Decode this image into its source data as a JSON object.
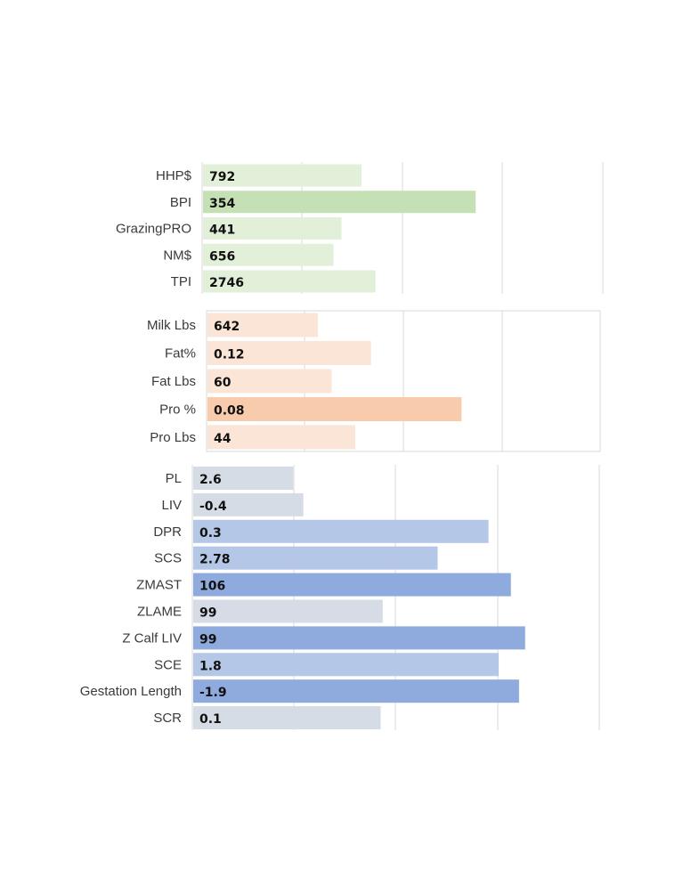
{
  "chart_data": [
    {
      "type": "bar",
      "orientation": "horizontal",
      "categories": [
        "HHP$",
        "BPI",
        "GrazingPRO",
        "NM$",
        "TPI"
      ],
      "values": [
        792,
        354,
        441,
        656,
        2746
      ],
      "value_labels": [
        "792",
        "354",
        "441",
        "656",
        "2746"
      ],
      "bar_fill_fraction": [
        0.4,
        0.685,
        0.35,
        0.33,
        0.435
      ],
      "colors": [
        "#e2f0d9",
        "#c5e0b4",
        "#e2f0d9",
        "#e2f0d9",
        "#e2f0d9"
      ],
      "grid": true
    },
    {
      "type": "bar",
      "orientation": "horizontal",
      "categories": [
        "Milk Lbs",
        "Fat%",
        "Fat Lbs",
        "Pro %",
        "Pro Lbs"
      ],
      "values": [
        642,
        0.12,
        60,
        0.08,
        44
      ],
      "value_labels": [
        "642",
        "0.12",
        "60",
        "0.08",
        "44"
      ],
      "bar_fill_fraction": [
        0.285,
        0.42,
        0.32,
        0.65,
        0.38
      ],
      "colors": [
        "#fbe5d6",
        "#fbe5d6",
        "#fbe5d6",
        "#f8cbad",
        "#fbe5d6"
      ],
      "grid": true
    },
    {
      "type": "bar",
      "orientation": "horizontal",
      "categories": [
        "PL",
        "LIV",
        "DPR",
        "SCS",
        "ZMAST",
        "ZLAME",
        "Z Calf LIV",
        "SCE",
        "Gestation Length",
        "SCR"
      ],
      "values": [
        2.6,
        -0.4,
        0.3,
        2.78,
        106,
        99,
        99,
        1.8,
        -1.9,
        0.1
      ],
      "value_labels": [
        "2.6",
        "-0.4",
        "0.3",
        "2.78",
        "106",
        "99",
        "99",
        "1.8",
        "-1.9",
        "0.1"
      ],
      "bar_fill_fraction": [
        0.25,
        0.275,
        0.73,
        0.605,
        0.785,
        0.47,
        0.82,
        0.755,
        0.805,
        0.465
      ],
      "colors": [
        "#d6dce5",
        "#d6dce5",
        "#b4c7e7",
        "#b4c7e7",
        "#8faadc",
        "#d6dce5",
        "#8faadc",
        "#b4c7e7",
        "#8faadc",
        "#d6dce5"
      ],
      "grid": true
    }
  ]
}
